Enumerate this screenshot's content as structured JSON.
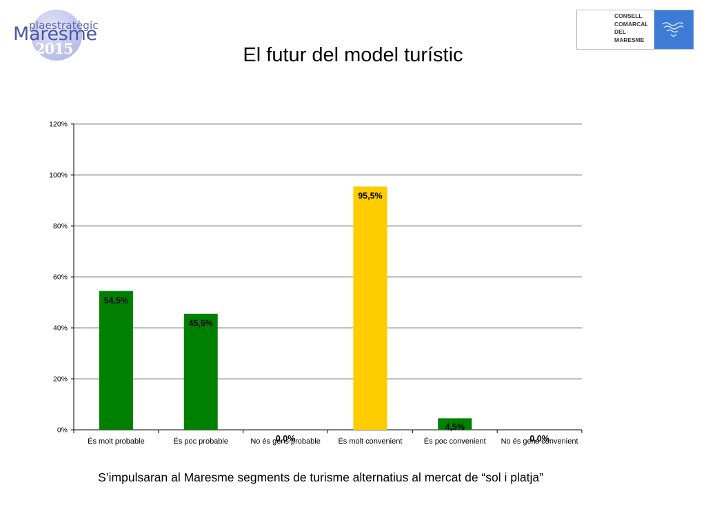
{
  "header": {
    "logo_left": {
      "small": "plaestratègic",
      "big": "Maresme",
      "year": "2015"
    },
    "logo_right": {
      "lines": [
        "CONSELL",
        "COMARCAL",
        "DEL",
        "MARESME"
      ],
      "icon": "waves-emblem-icon"
    },
    "title": "El futur del model turístic"
  },
  "chart_data": {
    "type": "bar",
    "categories": [
      "És molt probable",
      "És poc probable",
      "No és gens probable",
      "És molt convenient",
      "És poc convenient",
      "No és gens convenient"
    ],
    "values": [
      54.5,
      45.5,
      0.0,
      95.5,
      4.5,
      0.0
    ],
    "data_labels": [
      "54,5%",
      "45,5%",
      "0,0%",
      "95,5%",
      "4,5%",
      "0,0%"
    ],
    "colors": [
      "#008000",
      "#008000",
      "#008000",
      "#FFCC00",
      "#008000",
      "#008000"
    ],
    "ylim": [
      0,
      120
    ],
    "yticks": [
      0,
      20,
      40,
      60,
      80,
      100,
      120
    ],
    "ytick_labels": [
      "0%",
      "20%",
      "40%",
      "60%",
      "80%",
      "100%",
      "120%"
    ],
    "grid": true,
    "legend": "none"
  },
  "caption": "S’impulsaran al Maresme segments de turisme alternatius al mercat de “sol i platja”"
}
